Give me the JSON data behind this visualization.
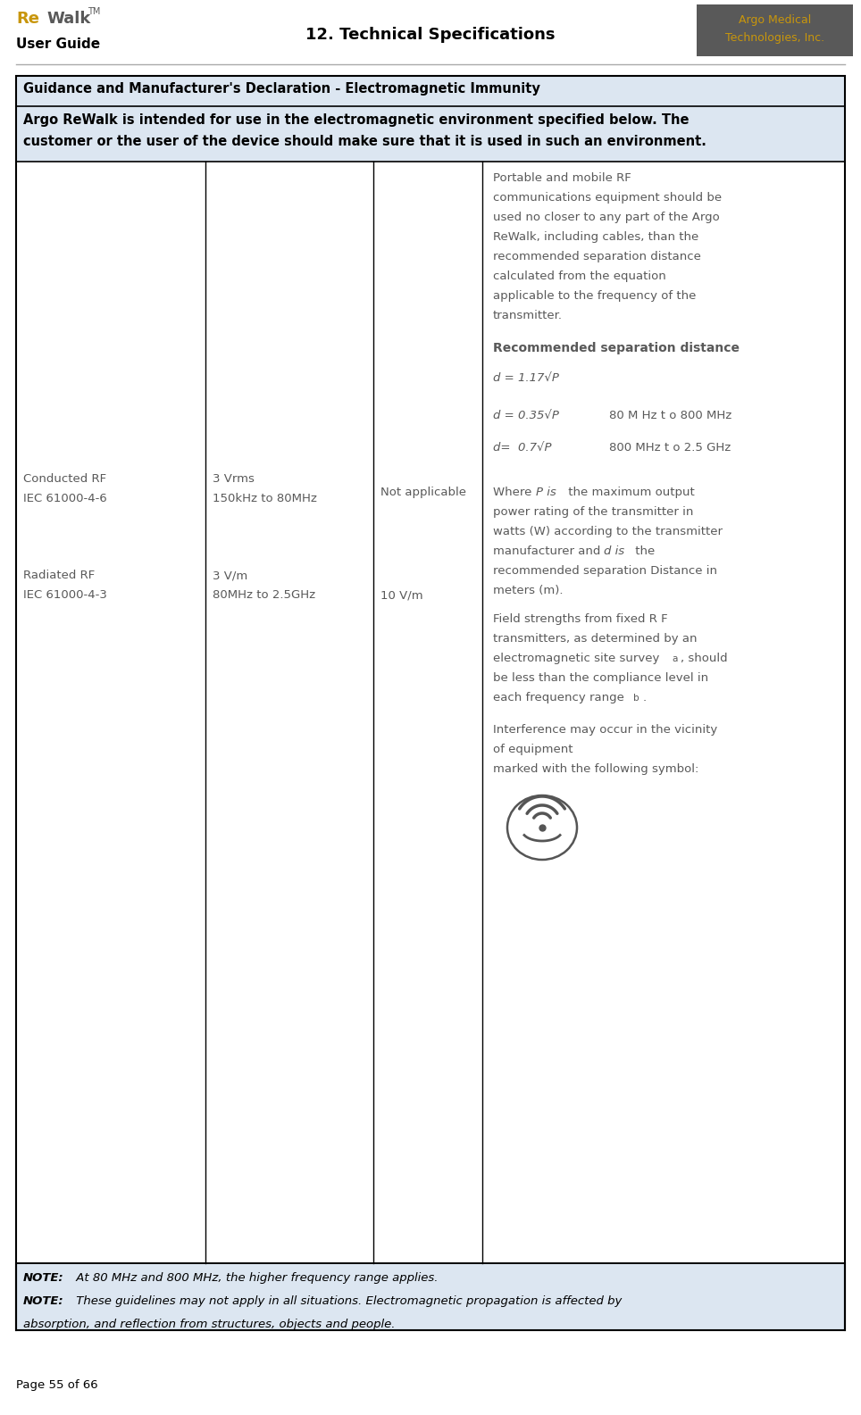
{
  "page_width": 9.64,
  "page_height": 15.85,
  "dpi": 100,
  "bg_color": "#ffffff",
  "header_title": "12. Technical Specifications",
  "header_argo_box_color": "#595959",
  "header_argo_text_color": "#c8960c",
  "table_bg_light": "#dce6f1",
  "table_bg_white": "#ffffff",
  "border_color": "#000000",
  "text_black": "#000000",
  "text_gray": "#595959",
  "logo_re_color": "#c8960c",
  "logo_walk_color": "#595959",
  "footer_text": "Page 55 of 66",
  "note1_bold": "NOTE:",
  "note1_rest": " At 80 MHz and 800 MHz, the higher frequency range applies.",
  "note2_bold": "NOTE:",
  "note2_rest": " These guidelines may not apply in all situations. Electromagnetic propagation is affected by",
  "note3": "absorption, and reflection from structures, objects and people.",
  "col4_bold": "Recommended separation distance",
  "col4_eq1": "d = 1.17√P",
  "col4_eq2_a": "d = 0.35√P",
  "col4_eq2_b": "80 M Hz t o 800 MHz",
  "col4_eq3_a": "d=  0.7√P",
  "col4_eq3_b": "800 MHz t o 2.5 GHz"
}
